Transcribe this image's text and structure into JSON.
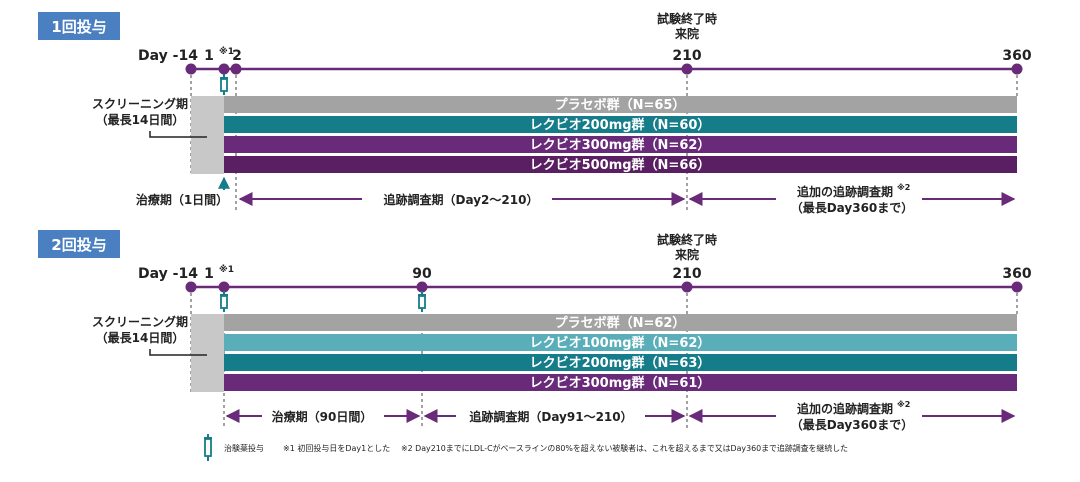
{
  "colors": {
    "purple": "#6a2a7a",
    "dark_purple": "#5a1f62",
    "teal": "#157c8a",
    "light_teal": "#5aaeb9",
    "gray": "#a3a3a3",
    "screen_gray": "#c8c8c8",
    "label_blue": "#4a7fc1",
    "text": "#222222"
  },
  "study_end_label_line1": "試験終了時",
  "study_end_label_line2": "来院",
  "screening_label_line1": "スクリーニング期",
  "screening_label_line2": "（最長14日間）",
  "panel1": {
    "title": "1回投与",
    "day_minus14": "Day -14",
    "day1": "1",
    "day1_note": "※1",
    "day2": "2",
    "day210": "210",
    "day360": "360",
    "arms": [
      {
        "label": "プラセボ群（N=65）"
      },
      {
        "label": "レクビオ200mg群（N=60）"
      },
      {
        "label": "レクビオ300mg群（N=62）"
      },
      {
        "label": "レクビオ500mg群（N=66）"
      }
    ],
    "treatment_label": "治療期（1日間）",
    "followup_label": "追跡調査期（Day2～210）",
    "additional_label_line1": "追加の追跡調査期",
    "additional_note": "※2",
    "additional_label_line2": "（最長Day360まで）"
  },
  "panel2": {
    "title": "2回投与",
    "day_minus14": "Day -14",
    "day1": "1",
    "day1_note": "※1",
    "day90": "90",
    "day210": "210",
    "day360": "360",
    "arms": [
      {
        "label": "プラセボ群（N=62）"
      },
      {
        "label": "レクビオ100mg群（N=62）"
      },
      {
        "label": "レクビオ200mg群（N=63）"
      },
      {
        "label": "レクビオ300mg群（N=61）"
      }
    ],
    "treatment_label": "治療期（90日間）",
    "followup_label": "追跡調査期（Day91～210）",
    "additional_label_line1": "追加の追跡調査期",
    "additional_note": "※2",
    "additional_label_line2": "（最長Day360まで）"
  },
  "footnote": {
    "legend": "治験薬投与",
    "note1": "※1 初回投与日をDay1とした",
    "note2": "※2 Day210までにLDL-Cがベースラインの80%を超えない被験者は、これを超えるまで又はDay360まで追跡調査を継続した"
  }
}
